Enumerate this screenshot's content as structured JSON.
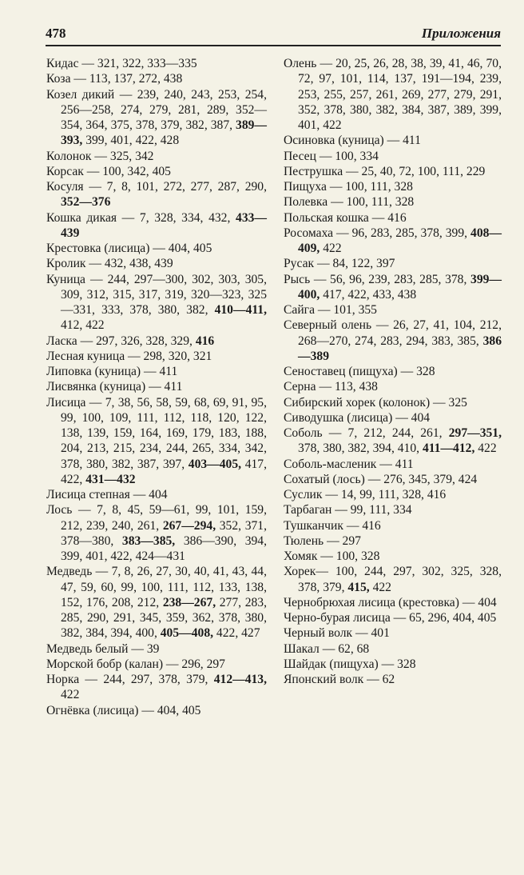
{
  "header": {
    "page_number": "478",
    "section_title": "Приложения"
  },
  "columns": [
    {
      "entries": [
        {
          "parts": [
            {
              "t": "Кидас — 321, 322, 333—335"
            }
          ]
        },
        {
          "parts": [
            {
              "t": "Коза — 113, 137, 272, 438"
            }
          ]
        },
        {
          "parts": [
            {
              "t": "Козел дикий — 239, 240, 243, 253, 254, 256—258, 274, 279, 281, 289, 352—354, 364, 375, 378, 379, 382, 387, "
            },
            {
              "t": "389—393,",
              "b": true
            },
            {
              "t": " 399, 401, 422, 428"
            }
          ]
        },
        {
          "parts": [
            {
              "t": "Колонок — 325, 342"
            }
          ]
        },
        {
          "parts": [
            {
              "t": "Корсак — 100, 342, 405"
            }
          ]
        },
        {
          "parts": [
            {
              "t": "Косуля — 7, 8, 101, 272, 277, 287, 290, "
            },
            {
              "t": "352—376",
              "b": true
            }
          ]
        },
        {
          "parts": [
            {
              "t": "Кошка дикая — 7, 328, 334, 432, "
            },
            {
              "t": "433—439",
              "b": true
            }
          ]
        },
        {
          "parts": [
            {
              "t": "Крестовка (лисица) — 404, 405"
            }
          ]
        },
        {
          "parts": [
            {
              "t": "Кролик — 432, 438, 439"
            }
          ]
        },
        {
          "parts": [
            {
              "t": "Куница — 244, 297—300, 302, 303, 305, 309, 312, 315, 317, 319, 320—323, 325—331, 333, 378, 380, 382, "
            },
            {
              "t": "410—411,",
              "b": true
            },
            {
              "t": " 412, 422"
            }
          ]
        },
        {
          "parts": [
            {
              "t": "Ласка — 297, 326, 328, 329, "
            },
            {
              "t": "416",
              "b": true
            }
          ]
        },
        {
          "parts": [
            {
              "t": "Лесная куница — 298, 320, 321"
            }
          ]
        },
        {
          "parts": [
            {
              "t": "Липовка (куница) — 411"
            }
          ]
        },
        {
          "parts": [
            {
              "t": "Лисвянка (куница) — 411"
            }
          ]
        },
        {
          "parts": [
            {
              "t": "Лисица — 7, 38, 56, 58, 59, 68, 69, 91, 95, 99, 100, 109, 111, 112, 118, 120, 122, 138, 139, 159, 164, 169, 179, 183, 188, 204, 213, 215, 234, 244, 265, 334, 342, 378, 380, 382, 387, 397, "
            },
            {
              "t": "403—405,",
              "b": true
            },
            {
              "t": " 417, 422, "
            },
            {
              "t": "431—432",
              "b": true
            }
          ]
        },
        {
          "parts": [
            {
              "t": "Лисица степная — 404"
            }
          ]
        },
        {
          "parts": [
            {
              "t": "Лось — 7, 8, 45, 59—61, 99, 101, 159, 212, 239, 240, 261, "
            },
            {
              "t": "267—294,",
              "b": true
            },
            {
              "t": " 352, 371, 378—380, "
            },
            {
              "t": "383—385,",
              "b": true
            },
            {
              "t": " 386—390, 394, 399, 401, 422, 424—431"
            }
          ]
        },
        {
          "parts": [
            {
              "t": "Медведь — 7, 8, 26, 27, 30, 40, 41, 43, 44, 47, 59, 60, 99, 100, 111, 112, 133, 138, 152, 176, 208, 212, "
            },
            {
              "t": "238—267,",
              "b": true
            },
            {
              "t": " 277, 283, 285, 290, 291, 345, 359, 362, 378, 380, 382, 384, 394, 400, "
            },
            {
              "t": "405—408,",
              "b": true
            },
            {
              "t": " 422, 427"
            }
          ]
        },
        {
          "parts": [
            {
              "t": "Медведь белый — 39"
            }
          ]
        },
        {
          "parts": [
            {
              "t": "Морской бобр (калан) — 296, 297"
            }
          ]
        },
        {
          "parts": [
            {
              "t": "Норка — 244, 297, 378, 379, "
            },
            {
              "t": "412—413,",
              "b": true
            },
            {
              "t": " 422"
            }
          ]
        },
        {
          "parts": [
            {
              "t": "Огнёвка (лисица) — 404, 405"
            }
          ]
        }
      ]
    },
    {
      "entries": [
        {
          "parts": [
            {
              "t": "Олень — 20, 25, 26, 28, 38, 39, 41, 46, 70, 72, 97, 101, 114, 137, 191—194, 239, 253, 255, 257, 261, 269, 277, 279, 291, 352, 378, 380, 382, 384, 387, 389, 399, 401, 422"
            }
          ]
        },
        {
          "parts": [
            {
              "t": "Осиновка (куница) — 411"
            }
          ]
        },
        {
          "parts": [
            {
              "t": "Песец — 100, 334"
            }
          ]
        },
        {
          "parts": [
            {
              "t": "Пеструшка — 25, 40, 72, 100, 111, 229"
            }
          ]
        },
        {
          "parts": [
            {
              "t": "Пищуха — 100, 111, 328"
            }
          ]
        },
        {
          "parts": [
            {
              "t": "Полевка — 100, 111, 328"
            }
          ]
        },
        {
          "parts": [
            {
              "t": "Польская кошка — 416"
            }
          ]
        },
        {
          "parts": [
            {
              "t": "Росомаха — 96, 283, 285, 378, 399, "
            },
            {
              "t": "408—409,",
              "b": true
            },
            {
              "t": " 422"
            }
          ]
        },
        {
          "parts": [
            {
              "t": "Русак — 84, 122, 397"
            }
          ]
        },
        {
          "parts": [
            {
              "t": "Рысь — 56, 96, 239, 283, 285, 378, "
            },
            {
              "t": "399—400,",
              "b": true
            },
            {
              "t": " 417, 422, 433, 438"
            }
          ]
        },
        {
          "parts": [
            {
              "t": "Сайга — 101, 355"
            }
          ]
        },
        {
          "parts": [
            {
              "t": "Северный олень — 26, 27, 41, 104, 212, 268—270, 274, 283, 294, 383, 385, "
            },
            {
              "t": "386—389",
              "b": true
            }
          ]
        },
        {
          "parts": [
            {
              "t": "Сеноставец (пищуха) — 328"
            }
          ]
        },
        {
          "parts": [
            {
              "t": "Серна — 113, 438"
            }
          ]
        },
        {
          "parts": [
            {
              "t": "Сибирский хорек (колонок) — 325"
            }
          ]
        },
        {
          "parts": [
            {
              "t": "Сиводушка (лисица) — 404"
            }
          ]
        },
        {
          "parts": [
            {
              "t": "Соболь — 7, 212, 244, 261, "
            },
            {
              "t": "297—351,",
              "b": true
            },
            {
              "t": " 378, 380, 382, 394, 410, "
            },
            {
              "t": "411—412,",
              "b": true
            },
            {
              "t": " 422"
            }
          ]
        },
        {
          "parts": [
            {
              "t": "Соболь-масленик — 411"
            }
          ]
        },
        {
          "parts": [
            {
              "t": "Сохатый (лось) — 276, 345, 379, 424"
            }
          ]
        },
        {
          "parts": [
            {
              "t": "Суслик — 14, 99, 111, 328, 416"
            }
          ]
        },
        {
          "parts": [
            {
              "t": "Тарбаган — 99, 111, 334"
            }
          ]
        },
        {
          "parts": [
            {
              "t": "Тушканчик — 416"
            }
          ]
        },
        {
          "parts": [
            {
              "t": "Тюлень — 297"
            }
          ]
        },
        {
          "parts": [
            {
              "t": "Хомяк — 100, 328"
            }
          ]
        },
        {
          "parts": [
            {
              "t": "Хорек— 100, 244, 297, 302, 325, 328, 378, 379, "
            },
            {
              "t": "415,",
              "b": true
            },
            {
              "t": " 422"
            }
          ]
        },
        {
          "parts": [
            {
              "t": "Чернобрюхая лисица (крестовка) — 404"
            }
          ]
        },
        {
          "parts": [
            {
              "t": "Черно-бурая лисица — 65, 296, 404, 405"
            }
          ]
        },
        {
          "parts": [
            {
              "t": "Черный волк — 401"
            }
          ]
        },
        {
          "parts": [
            {
              "t": "Шакал — 62, 68"
            }
          ]
        },
        {
          "parts": [
            {
              "t": "Шайдак (пищуха) — 328"
            }
          ]
        },
        {
          "parts": [
            {
              "t": "Японский волк — 62"
            }
          ]
        }
      ]
    }
  ]
}
